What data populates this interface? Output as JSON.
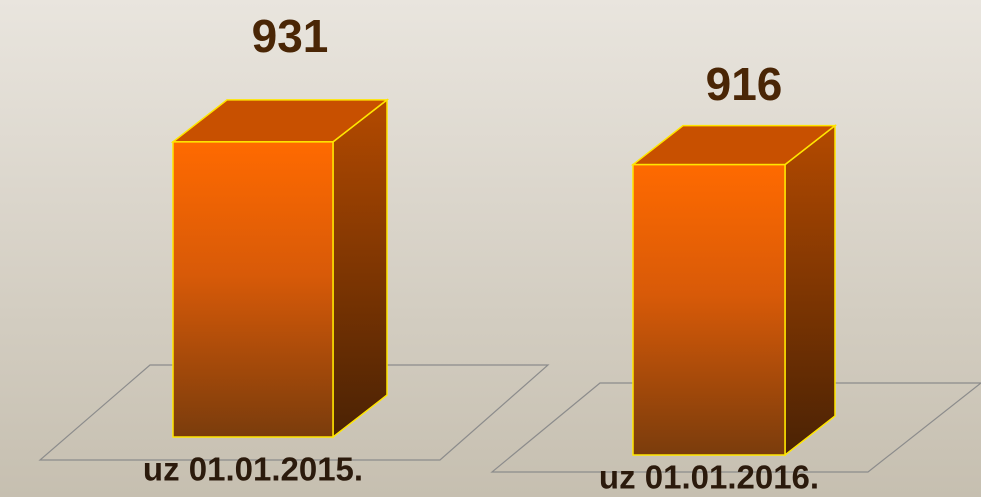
{
  "chart_data": {
    "type": "bar3d",
    "categories": [
      "uz 01.01.2015.",
      "uz 01.01.2016."
    ],
    "values": [
      931,
      916
    ],
    "color": "#ff6a00"
  }
}
